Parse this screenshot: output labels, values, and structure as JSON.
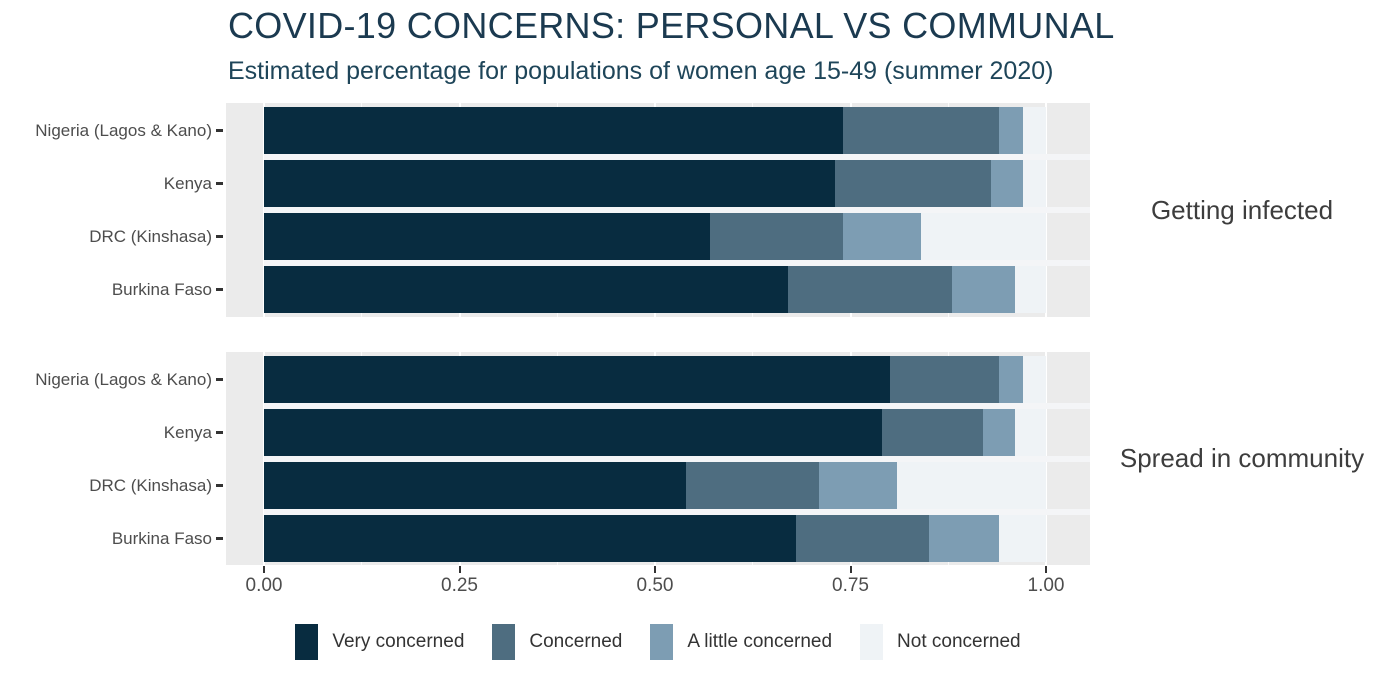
{
  "chart_data": {
    "type": "bar",
    "variant": "horizontal_stacked_proportion",
    "title": "COVID-19 CONCERNS: PERSONAL VS COMMUNAL",
    "subtitle": "Estimated percentage for populations of women age 15-49 (summer 2020)",
    "categories": [
      "Nigeria (Lagos & Kano)",
      "Kenya",
      "DRC (Kinshasa)",
      "Burkina Faso"
    ],
    "series_names": [
      "Very concerned",
      "Concerned",
      "A little concerned",
      "Not concerned"
    ],
    "series_colors": [
      "#082c40",
      "#4e6d80",
      "#7d9db3",
      "#eff3f6"
    ],
    "panels": [
      {
        "facet_label": "Getting infected",
        "rows": [
          {
            "category": "Nigeria (Lagos & Kano)",
            "values": [
              0.74,
              0.2,
              0.03,
              0.03
            ]
          },
          {
            "category": "Kenya",
            "values": [
              0.73,
              0.2,
              0.04,
              0.03
            ]
          },
          {
            "category": "DRC (Kinshasa)",
            "values": [
              0.57,
              0.17,
              0.1,
              0.16
            ]
          },
          {
            "category": "Burkina Faso",
            "values": [
              0.67,
              0.21,
              0.08,
              0.04
            ]
          }
        ]
      },
      {
        "facet_label": "Spread in community",
        "rows": [
          {
            "category": "Nigeria (Lagos & Kano)",
            "values": [
              0.8,
              0.14,
              0.03,
              0.03
            ]
          },
          {
            "category": "Kenya",
            "values": [
              0.79,
              0.13,
              0.04,
              0.04
            ]
          },
          {
            "category": "DRC (Kinshasa)",
            "values": [
              0.54,
              0.17,
              0.1,
              0.19
            ]
          },
          {
            "category": "Burkina Faso",
            "values": [
              0.68,
              0.17,
              0.09,
              0.06
            ]
          }
        ]
      }
    ],
    "x_ticks": [
      {
        "label": "0.00",
        "value": 0.0
      },
      {
        "label": "0.25",
        "value": 0.25
      },
      {
        "label": "0.50",
        "value": 0.5
      },
      {
        "label": "0.75",
        "value": 0.75
      },
      {
        "label": "1.00",
        "value": 1.0
      }
    ],
    "xlim": [
      0,
      1
    ],
    "xlabel": "",
    "ylabel": "",
    "legend_position": "bottom",
    "panel_background": "#ebebeb",
    "gridline_color": "#ffffff",
    "title_color": "#1b3a50",
    "axis_text_color": "#4d4d4d",
    "facet_label_color": "#3d3d3d"
  }
}
